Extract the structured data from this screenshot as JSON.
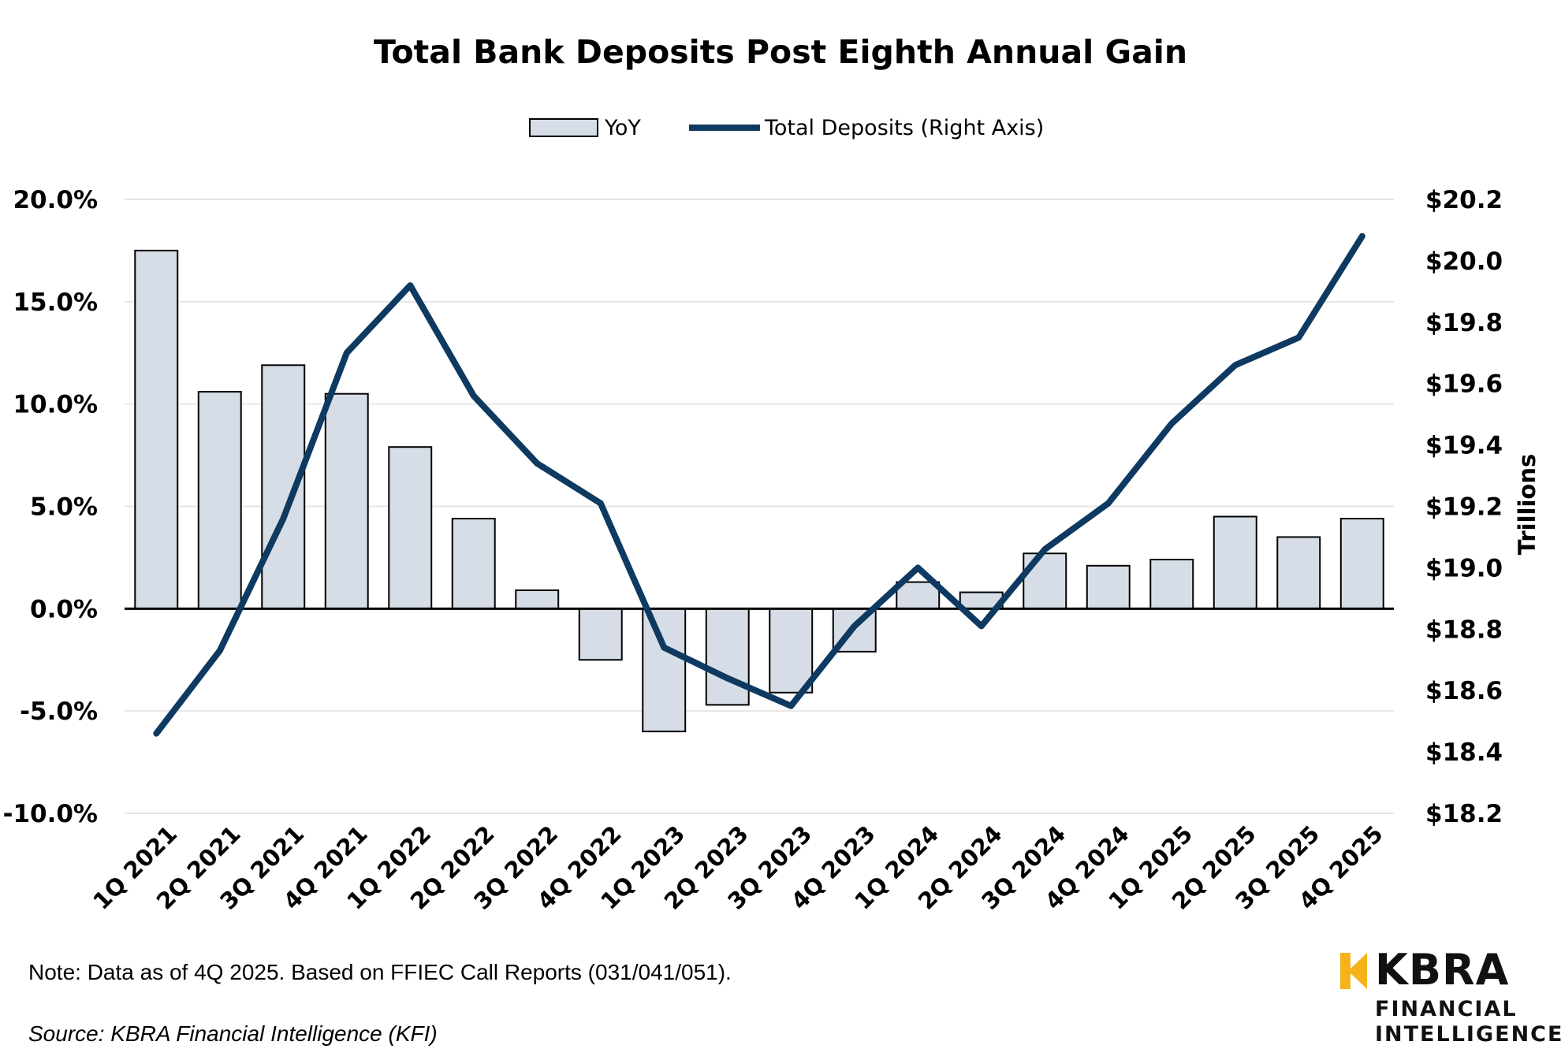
{
  "chart_data": {
    "type": "bar",
    "title": "Total Bank Deposits Post Eighth Annual Gain",
    "categories": [
      "1Q 2021",
      "2Q 2021",
      "3Q 2021",
      "4Q 2021",
      "1Q 2022",
      "2Q 2022",
      "3Q 2022",
      "4Q 2022",
      "1Q 2023",
      "2Q 2023",
      "3Q 2023",
      "4Q 2023",
      "1Q 2024",
      "2Q 2024",
      "3Q 2024",
      "4Q 2024",
      "1Q 2025",
      "2Q 2025",
      "3Q 2025",
      "4Q 2025"
    ],
    "series": [
      {
        "name": "YoY",
        "type": "bar",
        "axis": "left",
        "values": [
          17.5,
          10.6,
          11.9,
          10.5,
          7.9,
          4.4,
          0.9,
          -2.5,
          -6.0,
          -4.7,
          -4.1,
          -2.1,
          1.3,
          0.8,
          2.7,
          2.1,
          2.4,
          4.5,
          3.5,
          4.4
        ]
      },
      {
        "name": "Total Deposits (Right Axis)",
        "type": "line",
        "axis": "right",
        "values": [
          18.46,
          18.73,
          19.16,
          19.7,
          19.92,
          19.56,
          19.34,
          19.21,
          18.74,
          18.64,
          18.55,
          18.81,
          19.0,
          18.81,
          19.06,
          19.21,
          19.47,
          19.66,
          19.75,
          20.08
        ]
      }
    ],
    "y_left": {
      "min": -10,
      "max": 20,
      "ticks": [
        "20.0%",
        "15.0%",
        "10.0%",
        "5.0%",
        "0.0%",
        "-5.0%",
        "-10.0%"
      ]
    },
    "y_right": {
      "min": 18.2,
      "max": 20.2,
      "label": "Trillions",
      "ticks": [
        "$20.2",
        "$20.0",
        "$19.8",
        "$19.6",
        "$19.4",
        "$19.2",
        "$19.0",
        "$18.8",
        "$18.6",
        "$18.4",
        "$18.2"
      ]
    },
    "legend_position": "top-center",
    "grid": true,
    "colors": {
      "bar_fill": "#d6dde6",
      "bar_stroke": "#000000",
      "line": "#0e3a61",
      "grid": "#e6e6e6",
      "zero_line": "#000000"
    }
  },
  "footer": {
    "note": "Note: Data as of 4Q 2025. Based on FFIEC Call Reports (031/041/051).",
    "source": "Source: KBRA Financial Intelligence (KFI)"
  },
  "logo": {
    "name": "KBRA",
    "sub1": "FINANCIAL",
    "sub2": "INTELLIGENCE",
    "mark_color": "#f5b21a"
  }
}
